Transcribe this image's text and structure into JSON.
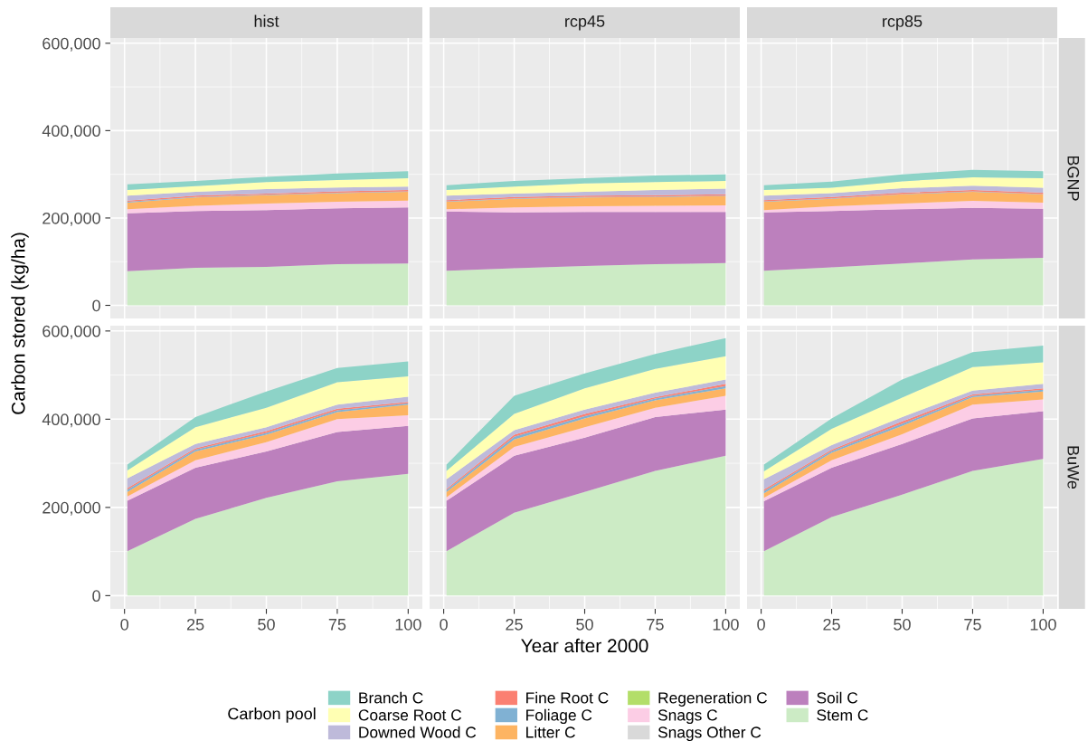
{
  "chart_data": [
    {
      "type": "area",
      "stacked": true,
      "title": "hist",
      "legend": "bottom",
      "legend_title": "Carbon pool",
      "x": [
        1,
        25,
        50,
        75,
        100
      ],
      "xlim": [
        -5,
        105
      ],
      "xticks": [
        0,
        25,
        50,
        75,
        100
      ],
      "ylim": [
        -30000,
        612000
      ],
      "yticks": [
        0,
        {
          "value": 200000,
          "label": "200,000"
        },
        {
          "value": 400000,
          "label": "400,000"
        },
        {
          "value": 600000,
          "label": "600,000"
        }
      ],
      "grid": true,
      "tick_labels": "y",
      "series": [
        {
          "name": "Stem C",
          "color": "#ccebc5",
          "values": [
            78000,
            86000,
            88000,
            94000,
            96000
          ]
        },
        {
          "name": "Soil C",
          "color": "#bc80bd",
          "values": [
            133000,
            130000,
            130000,
            128000,
            128000
          ]
        },
        {
          "name": "Snags Other C",
          "color": "#d9d9d9",
          "values": [
            null,
            null,
            null,
            null,
            null
          ]
        },
        {
          "name": "Snags C",
          "color": "#fccde5",
          "values": [
            9000,
            12000,
            15000,
            15000,
            16000
          ]
        },
        {
          "name": "Regeneration C",
          "color": "#b3de69",
          "values": [
            null,
            null,
            null,
            null,
            null
          ]
        },
        {
          "name": "Litter C",
          "color": "#fdb462",
          "values": [
            15000,
            19000,
            19000,
            20000,
            20000
          ]
        },
        {
          "name": "Foliage C",
          "color": "#80b1d3",
          "values": [
            2000,
            1000,
            1000,
            1000,
            1000
          ]
        },
        {
          "name": "Fine Root C",
          "color": "#fb8072",
          "values": [
            3000,
            3000,
            3000,
            3000,
            3000
          ]
        },
        {
          "name": "Downed Wood C",
          "color": "#bebada",
          "values": [
            11000,
            9000,
            10000,
            9000,
            8000
          ]
        },
        {
          "name": "Coarse Root C",
          "color": "#ffffb3",
          "values": [
            13000,
            13000,
            16000,
            17000,
            19000
          ]
        },
        {
          "name": "Branch C",
          "color": "#8dd3c7",
          "values": [
            13000,
            12000,
            12000,
            15000,
            16000
          ]
        }
      ]
    },
    {
      "type": "area",
      "stacked": true,
      "title": "rcp45",
      "x": [
        1,
        25,
        50,
        75,
        100
      ],
      "xlim": [
        -5,
        105
      ],
      "xticks": [
        0,
        25,
        50,
        75,
        100
      ],
      "ylim": [
        -30000,
        612000
      ],
      "yticks": [
        0,
        200000,
        400000,
        600000
      ],
      "grid": true,
      "tick_labels": false,
      "series": [
        {
          "color": "#ccebc5",
          "values": [
            79000,
            85000,
            90000,
            94000,
            97000
          ]
        },
        {
          "color": "#bc80bd",
          "values": [
            136000,
            128000,
            124000,
            120000,
            117000
          ]
        },
        {
          "color": "#d9d9d9",
          "values": [
            null,
            null,
            null,
            null,
            null
          ]
        },
        {
          "color": "#fccde5",
          "values": [
            5000,
            11000,
            13000,
            14000,
            15000
          ]
        },
        {
          "color": "#b3de69",
          "values": [
            null,
            null,
            null,
            null,
            null
          ]
        },
        {
          "color": "#fdb462",
          "values": [
            17000,
            20000,
            20000,
            20000,
            21000
          ]
        },
        {
          "color": "#80b1d3",
          "values": [
            1000,
            1000,
            1000,
            1000,
            1000
          ]
        },
        {
          "color": "#fb8072",
          "values": [
            3000,
            3000,
            3000,
            3000,
            3000
          ]
        },
        {
          "color": "#bebada",
          "values": [
            10000,
            8000,
            9000,
            12000,
            13000
          ]
        },
        {
          "color": "#ffffb3",
          "values": [
            13000,
            16000,
            19000,
            18000,
            18000
          ]
        },
        {
          "color": "#8dd3c7",
          "values": [
            11000,
            13000,
            12000,
            15000,
            15000
          ]
        }
      ]
    },
    {
      "type": "area",
      "stacked": true,
      "title": "rcp85",
      "annotations": [
        "BGNP"
      ],
      "x": [
        1,
        25,
        50,
        75,
        100
      ],
      "xlim": [
        -5,
        105
      ],
      "xticks": [
        0,
        25,
        50,
        75,
        100
      ],
      "ylim": [
        -30000,
        612000
      ],
      "yticks": [
        0,
        200000,
        400000,
        600000
      ],
      "grid": true,
      "tick_labels": false,
      "series": [
        {
          "color": "#ccebc5",
          "values": [
            79000,
            87000,
            96000,
            105000,
            109000
          ]
        },
        {
          "color": "#bc80bd",
          "values": [
            134000,
            129000,
            124000,
            118000,
            112000
          ]
        },
        {
          "color": "#d9d9d9",
          "values": [
            null,
            null,
            null,
            null,
            null
          ]
        },
        {
          "color": "#fccde5",
          "values": [
            5000,
            11000,
            13000,
            16000,
            14000
          ]
        },
        {
          "color": "#b3de69",
          "values": [
            null,
            null,
            null,
            null,
            null
          ]
        },
        {
          "color": "#fdb462",
          "values": [
            19000,
            17000,
            21000,
            21000,
            19000
          ]
        },
        {
          "color": "#80b1d3",
          "values": [
            1000,
            1000,
            1000,
            1000,
            1000
          ]
        },
        {
          "color": "#fb8072",
          "values": [
            3000,
            3000,
            3000,
            3000,
            3000
          ]
        },
        {
          "color": "#bebada",
          "values": [
            10000,
            9000,
            10000,
            10000,
            11000
          ]
        },
        {
          "color": "#ffffb3",
          "values": [
            13000,
            12000,
            16000,
            19000,
            22000
          ]
        },
        {
          "color": "#8dd3c7",
          "values": [
            11000,
            14000,
            16000,
            17000,
            16000
          ]
        }
      ]
    },
    {
      "type": "area",
      "stacked": true,
      "ylabel": "Carbon stored (kg/ha)",
      "x": [
        1,
        25,
        50,
        75,
        100
      ],
      "xlim": [
        -5,
        105
      ],
      "xticks": [
        0,
        25,
        50,
        75,
        100
      ],
      "ylim": [
        -30000,
        612000
      ],
      "yticks": [
        0,
        {
          "value": 200000,
          "label": "200,000"
        },
        {
          "value": 400000,
          "label": "400,000"
        },
        {
          "value": 600000,
          "label": "600,000"
        }
      ],
      "grid": true,
      "series": [
        {
          "color": "#ccebc5",
          "values": [
            101000,
            174000,
            222000,
            259000,
            276000
          ]
        },
        {
          "color": "#bc80bd",
          "values": [
            114000,
            116000,
            105000,
            112000,
            109000
          ]
        },
        {
          "color": "#d9d9d9",
          "values": [
            null,
            null,
            null,
            null,
            null
          ]
        },
        {
          "color": "#fccde5",
          "values": [
            10000,
            17000,
            21000,
            29000,
            24000
          ]
        },
        {
          "color": "#b3de69",
          "values": [
            null,
            null,
            null,
            null,
            null
          ]
        },
        {
          "color": "#fdb462",
          "values": [
            10000,
            20000,
            17000,
            16000,
            24000
          ]
        },
        {
          "color": "#80b1d3",
          "values": [
            5000,
            4000,
            4000,
            4000,
            3000
          ]
        },
        {
          "color": "#fb8072",
          "values": [
            4000,
            3000,
            4000,
            4000,
            3000
          ]
        },
        {
          "color": "#bebada",
          "values": [
            22000,
            10000,
            9000,
            9000,
            12000
          ]
        },
        {
          "color": "#ffffb3",
          "values": [
            18000,
            38000,
            44000,
            51000,
            46000
          ]
        },
        {
          "color": "#8dd3c7",
          "values": [
            13000,
            23000,
            37000,
            32000,
            34000
          ]
        }
      ]
    },
    {
      "type": "area",
      "stacked": true,
      "xlabel": "Year after 2000",
      "x": [
        1,
        25,
        50,
        75,
        100
      ],
      "xlim": [
        -5,
        105
      ],
      "xticks": [
        0,
        25,
        50,
        75,
        100
      ],
      "ylim": [
        -30000,
        612000
      ],
      "yticks": [
        0,
        200000,
        400000,
        600000
      ],
      "grid": true,
      "tick_labels": "x",
      "series": [
        {
          "color": "#ccebc5",
          "values": [
            101000,
            188000,
            235000,
            283000,
            317000
          ]
        },
        {
          "color": "#bc80bd",
          "values": [
            114000,
            129000,
            123000,
            122000,
            105000
          ]
        },
        {
          "color": "#d9d9d9",
          "values": [
            null,
            null,
            null,
            null,
            null
          ]
        },
        {
          "color": "#fccde5",
          "values": [
            8000,
            20000,
            24000,
            21000,
            31000
          ]
        },
        {
          "color": "#b3de69",
          "values": [
            null,
            null,
            null,
            null,
            null
          ]
        },
        {
          "color": "#fdb462",
          "values": [
            12000,
            17000,
            20000,
            17000,
            17000
          ]
        },
        {
          "color": "#80b1d3",
          "values": [
            4000,
            6000,
            5000,
            4000,
            5000
          ]
        },
        {
          "color": "#fb8072",
          "values": [
            3000,
            5000,
            5000,
            3000,
            5000
          ]
        },
        {
          "color": "#bebada",
          "values": [
            22000,
            10000,
            10000,
            10000,
            10000
          ]
        },
        {
          "color": "#ffffb3",
          "values": [
            19000,
            37000,
            48000,
            54000,
            53000
          ]
        },
        {
          "color": "#8dd3c7",
          "values": [
            14000,
            41000,
            34000,
            34000,
            41000
          ]
        }
      ]
    },
    {
      "type": "area",
      "stacked": true,
      "annotations": [
        "BuWe"
      ],
      "x": [
        1,
        25,
        50,
        75,
        100
      ],
      "xlim": [
        -5,
        105
      ],
      "xticks": [
        0,
        25,
        50,
        75,
        100
      ],
      "ylim": [
        -30000,
        612000
      ],
      "yticks": [
        0,
        200000,
        400000,
        600000
      ],
      "grid": true,
      "tick_labels": "x",
      "series": [
        {
          "color": "#ccebc5",
          "values": [
            101000,
            178000,
            229000,
            283000,
            310000
          ]
        },
        {
          "color": "#bc80bd",
          "values": [
            113000,
            112000,
            115000,
            119000,
            108000
          ]
        },
        {
          "color": "#d9d9d9",
          "values": [
            null,
            null,
            null,
            null,
            null
          ]
        },
        {
          "color": "#fccde5",
          "values": [
            8000,
            17000,
            22000,
            31000,
            27000
          ]
        },
        {
          "color": "#b3de69",
          "values": [
            null,
            null,
            null,
            null,
            null
          ]
        },
        {
          "color": "#fdb462",
          "values": [
            10000,
            17000,
            19000,
            17000,
            18000
          ]
        },
        {
          "color": "#80b1d3",
          "values": [
            5000,
            4000,
            5000,
            3000,
            4000
          ]
        },
        {
          "color": "#fb8072",
          "values": [
            4000,
            3000,
            5000,
            3000,
            3000
          ]
        },
        {
          "color": "#bebada",
          "values": [
            23000,
            10000,
            10000,
            9000,
            10000
          ]
        },
        {
          "color": "#ffffb3",
          "values": [
            18000,
            37000,
            44000,
            53000,
            49000
          ]
        },
        {
          "color": "#8dd3c7",
          "values": [
            15000,
            24000,
            41000,
            34000,
            38000
          ]
        }
      ]
    }
  ]
}
